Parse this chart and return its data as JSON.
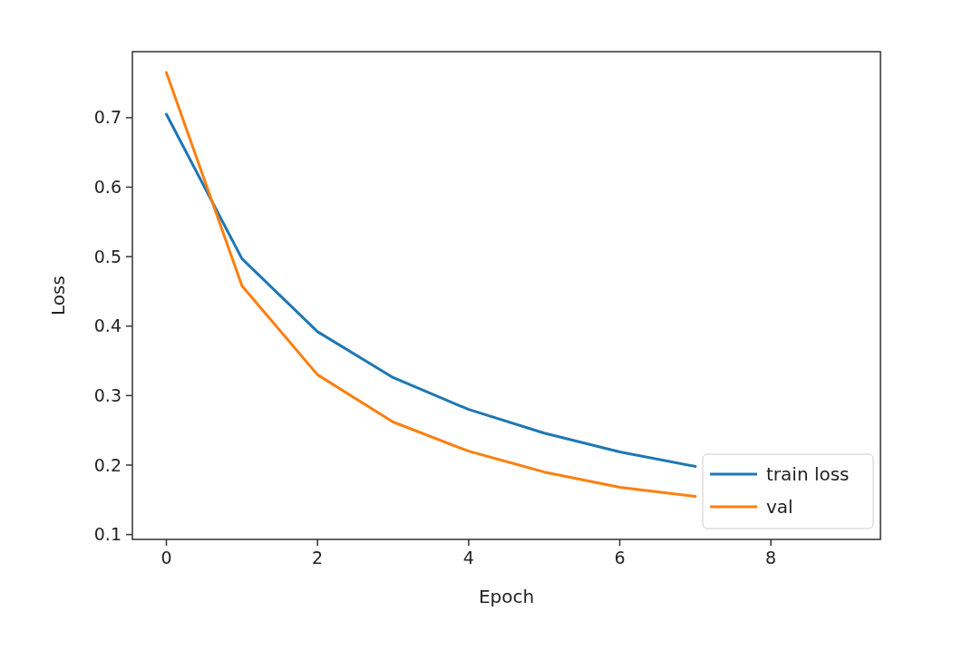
{
  "chart_data": {
    "type": "line",
    "xlabel": "Epoch",
    "ylabel": "Loss",
    "x": [
      0,
      1,
      2,
      3,
      4,
      5,
      6,
      7
    ],
    "series": [
      {
        "name": "train loss",
        "color": "#1f77b4",
        "values": [
          0.705,
          0.497,
          0.392,
          0.326,
          0.28,
          0.246,
          0.219,
          0.198
        ]
      },
      {
        "name": "val",
        "color": "#ff7f0e",
        "values": [
          0.765,
          0.458,
          0.33,
          0.262,
          0.22,
          0.19,
          0.168,
          0.155
        ]
      }
    ],
    "xlim": [
      -0.45,
      9.45
    ],
    "ylim": [
      0.093,
      0.795
    ],
    "xticks": [
      0,
      2,
      4,
      6,
      8
    ],
    "yticks": [
      0.1,
      0.2,
      0.3,
      0.4,
      0.5,
      0.6,
      0.7
    ],
    "grid": false,
    "legend": "bottom right",
    "marker": "none",
    "line_style": "solid"
  }
}
